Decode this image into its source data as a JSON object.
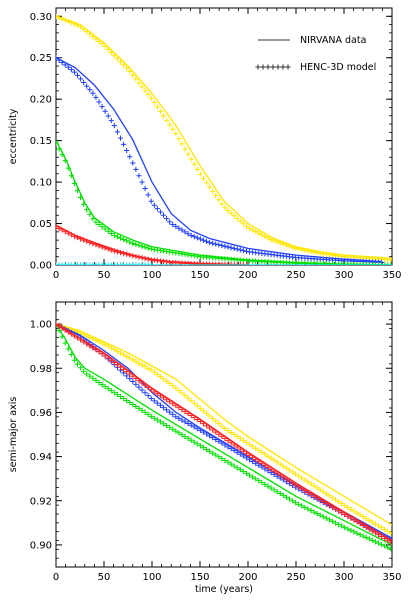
{
  "legend": {
    "line_label": "NIRVANA data",
    "marker_label": "HENC-3D model"
  },
  "chart_data": [
    {
      "type": "line",
      "title": "",
      "xlabel": "",
      "ylabel": "eccentricity",
      "xlim": [
        0,
        350
      ],
      "ylim": [
        0,
        0.31
      ],
      "xticks": [
        "0",
        "50",
        "100",
        "150",
        "200",
        "250",
        "300",
        "350"
      ],
      "yticks": [
        "0.00",
        "0.05",
        "0.10",
        "0.15",
        "0.20",
        "0.25",
        "0.30"
      ],
      "legend_position": "top-right",
      "series": [
        {
          "color": "#ffe600",
          "line": {
            "x": [
              0,
              25,
              50,
              75,
              100,
              125,
              150,
              175,
              200,
              225,
              250,
              275,
              300,
              350
            ],
            "y": [
              0.3,
              0.29,
              0.268,
              0.24,
              0.207,
              0.168,
              0.12,
              0.077,
              0.05,
              0.033,
              0.022,
              0.016,
              0.012,
              0.008
            ]
          },
          "markers": {
            "x": [
              0,
              25,
              50,
              75,
              100,
              125,
              150,
              175,
              200,
              225,
              250,
              275,
              300,
              350
            ],
            "y": [
              0.3,
              0.288,
              0.265,
              0.236,
              0.2,
              0.158,
              0.11,
              0.07,
              0.045,
              0.03,
              0.02,
              0.014,
              0.01,
              0.006
            ]
          }
        },
        {
          "color": "#2040ff",
          "line": {
            "x": [
              0,
              20,
              40,
              60,
              80,
              100,
              120,
              140,
              160,
              200,
              250,
              300,
              340
            ],
            "y": [
              0.25,
              0.238,
              0.217,
              0.188,
              0.151,
              0.1,
              0.062,
              0.042,
              0.032,
              0.02,
              0.012,
              0.007,
              0.004
            ]
          },
          "markers": {
            "x": [
              0,
              20,
              40,
              60,
              80,
              100,
              120,
              140,
              160,
              200,
              250,
              300,
              340
            ],
            "y": [
              0.25,
              0.232,
              0.205,
              0.17,
              0.123,
              0.075,
              0.05,
              0.036,
              0.027,
              0.016,
              0.009,
              0.005,
              0.003
            ]
          }
        },
        {
          "color": "#00e000",
          "line": {
            "x": [
              0,
              10,
              20,
              30,
              40,
              60,
              80,
              100,
              150,
              200,
              250,
              300,
              350
            ],
            "y": [
              0.15,
              0.128,
              0.1,
              0.075,
              0.057,
              0.04,
              0.03,
              0.022,
              0.012,
              0.006,
              0.003,
              0.001,
              0.0
            ]
          },
          "markers": {
            "x": [
              0,
              10,
              20,
              30,
              40,
              60,
              80,
              100,
              150,
              200,
              250,
              300,
              350
            ],
            "y": [
              0.147,
              0.125,
              0.096,
              0.07,
              0.053,
              0.036,
              0.026,
              0.019,
              0.01,
              0.005,
              0.002,
              0.001,
              0.0
            ]
          }
        },
        {
          "color": "#ff2020",
          "line": {
            "x": [
              0,
              20,
              40,
              60,
              80,
              100,
              120,
              150,
              200
            ],
            "y": [
              0.048,
              0.036,
              0.027,
              0.019,
              0.012,
              0.007,
              0.004,
              0.002,
              0.0
            ]
          },
          "markers": {
            "x": [
              0,
              20,
              40,
              60,
              80,
              100,
              120,
              150,
              200
            ],
            "y": [
              0.046,
              0.034,
              0.025,
              0.017,
              0.011,
              0.006,
              0.003,
              0.001,
              0.0
            ]
          }
        },
        {
          "color": "#00e5ff",
          "line": {
            "x": [
              0,
              350
            ],
            "y": [
              0.0,
              0.0
            ]
          },
          "markers": {
            "x": [
              0,
              25,
              50,
              75,
              100
            ],
            "y": [
              0.0,
              0.0,
              0.0,
              0.0,
              0.0
            ]
          }
        }
      ]
    },
    {
      "type": "line",
      "title": "",
      "xlabel": "time (years)",
      "ylabel": "semi-major axis",
      "xlim": [
        0,
        350
      ],
      "ylim": [
        0.89,
        1.01
      ],
      "xticks": [
        "0",
        "50",
        "100",
        "150",
        "200",
        "250",
        "300",
        "350"
      ],
      "yticks": [
        "0.90",
        "0.92",
        "0.94",
        "0.96",
        "0.98",
        "1.00"
      ],
      "series": [
        {
          "color": "#ffe600",
          "line": {
            "x": [
              0,
              25,
              50,
              75,
              100,
              125,
              150,
              175,
              200,
              250,
              300,
              350
            ],
            "y": [
              1.0,
              0.997,
              0.992,
              0.987,
              0.981,
              0.975,
              0.966,
              0.957,
              0.949,
              0.935,
              0.922,
              0.909
            ]
          },
          "markers": {
            "x": [
              0,
              25,
              50,
              75,
              100,
              125,
              150,
              175,
              200,
              250,
              300,
              350
            ],
            "y": [
              1.0,
              0.996,
              0.991,
              0.985,
              0.979,
              0.971,
              0.962,
              0.953,
              0.946,
              0.932,
              0.918,
              0.905
            ]
          }
        },
        {
          "color": "#2040ff",
          "line": {
            "x": [
              0,
              25,
              50,
              75,
              100,
              125,
              150,
              200,
              250,
              300,
              350
            ],
            "y": [
              1.0,
              0.995,
              0.988,
              0.98,
              0.969,
              0.96,
              0.953,
              0.94,
              0.927,
              0.915,
              0.903
            ]
          },
          "markers": {
            "x": [
              0,
              25,
              50,
              75,
              100,
              125,
              150,
              200,
              250,
              300,
              350
            ],
            "y": [
              1.0,
              0.994,
              0.986,
              0.976,
              0.966,
              0.958,
              0.952,
              0.939,
              0.926,
              0.914,
              0.902
            ]
          }
        },
        {
          "color": "#00e000",
          "line": {
            "x": [
              0,
              10,
              20,
              30,
              50,
              75,
              100,
              150,
              200,
              250,
              300,
              350
            ],
            "y": [
              1.0,
              0.993,
              0.985,
              0.98,
              0.975,
              0.968,
              0.961,
              0.948,
              0.935,
              0.922,
              0.911,
              0.9
            ]
          },
          "markers": {
            "x": [
              0,
              10,
              20,
              30,
              50,
              75,
              100,
              150,
              200,
              250,
              300,
              350
            ],
            "y": [
              1.0,
              0.991,
              0.983,
              0.978,
              0.972,
              0.965,
              0.958,
              0.945,
              0.932,
              0.919,
              0.908,
              0.898
            ]
          }
        },
        {
          "color": "#ff2020",
          "line": {
            "x": [
              0,
              50,
              100,
              150,
              200,
              250,
              300,
              350
            ],
            "y": [
              1.0,
              0.987,
              0.971,
              0.957,
              0.942,
              0.928,
              0.915,
              0.902
            ]
          },
          "markers": {
            "x": [
              0,
              50,
              100,
              150,
              200,
              250,
              300,
              350
            ],
            "y": [
              1.0,
              0.986,
              0.97,
              0.956,
              0.941,
              0.927,
              0.914,
              0.901
            ]
          }
        }
      ]
    }
  ]
}
